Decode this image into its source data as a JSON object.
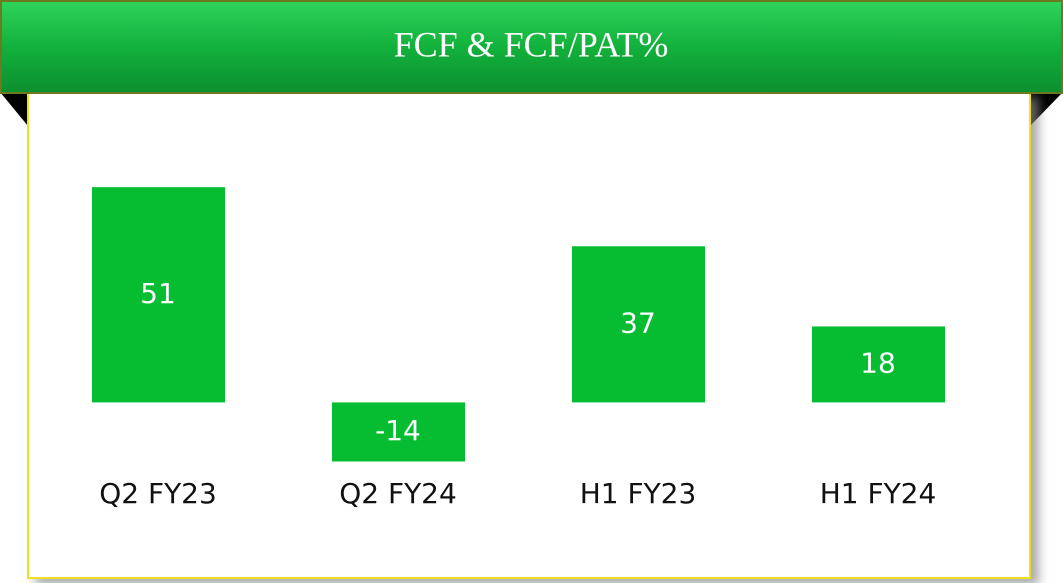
{
  "chart_data": {
    "type": "bar",
    "title": "FCF & FCF/PAT%",
    "categories": [
      "Q2 FY23",
      "Q2 FY24",
      "H1 FY23",
      "H1 FY24"
    ],
    "values": [
      51,
      -14,
      37,
      18
    ],
    "color": "#06bd31",
    "ylim": [
      -30,
      70
    ]
  }
}
